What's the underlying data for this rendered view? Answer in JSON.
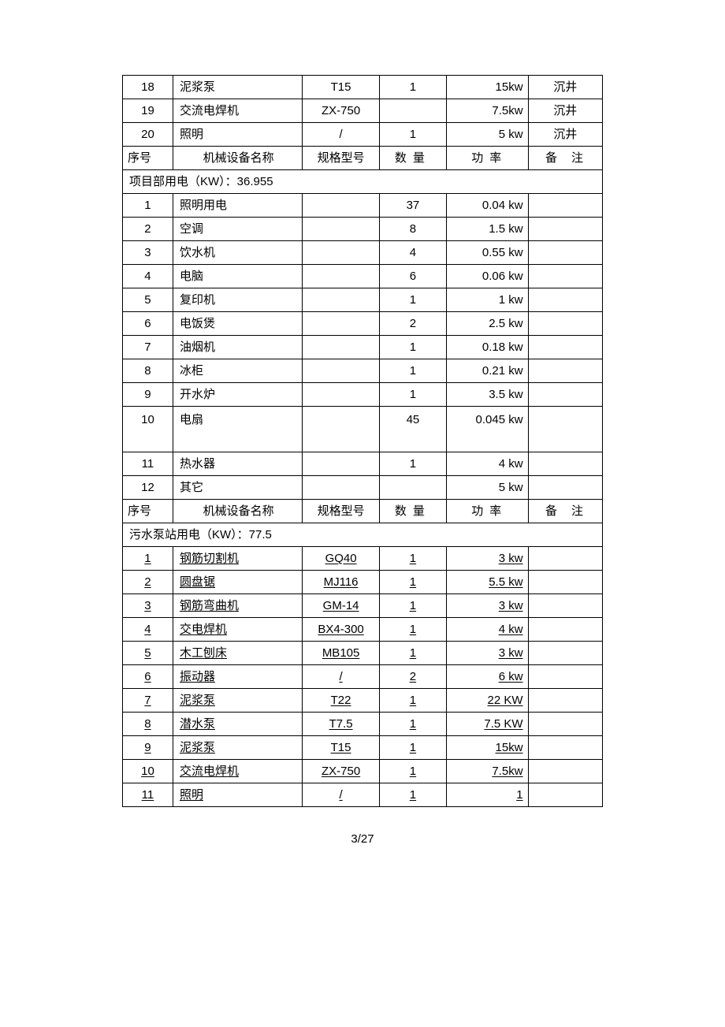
{
  "footer": "3/27",
  "sections": [
    {
      "type": "rows",
      "underline": false,
      "rows": [
        {
          "seq": "18",
          "name": "泥浆泵",
          "model": "T15",
          "qty": "1",
          "power": "15kw",
          "note": "沉井"
        },
        {
          "seq": "19",
          "name": "交流电焊机",
          "model": "ZX-750",
          "qty": "",
          "power": "7.5kw",
          "note": "沉井"
        },
        {
          "seq": "20",
          "name": "照明",
          "model": "/",
          "qty": "1",
          "power": "5 kw",
          "note": "沉井"
        }
      ]
    },
    {
      "type": "header",
      "cols": {
        "seq": "序号",
        "name": "机械设备名称",
        "model": "规格型号",
        "qty": "数量",
        "power": "功率",
        "note": "备注"
      }
    },
    {
      "type": "section",
      "text": "项目部用电（KW）：36.955"
    },
    {
      "type": "rows",
      "underline": false,
      "rows": [
        {
          "seq": "1",
          "name": "照明用电",
          "model": "",
          "qty": "37",
          "power": "0.04 kw",
          "note": ""
        },
        {
          "seq": "2",
          "name": "空调",
          "model": "",
          "qty": "8",
          "power": "1.5 kw",
          "note": ""
        },
        {
          "seq": "3",
          "name": "饮水机",
          "model": "",
          "qty": "4",
          "power": "0.55 kw",
          "note": ""
        },
        {
          "seq": "4",
          "name": "电脑",
          "model": "",
          "qty": "6",
          "power": "0.06 kw",
          "note": ""
        },
        {
          "seq": "5",
          "name": "复印机",
          "model": "",
          "qty": "1",
          "power": "1 kw",
          "note": ""
        },
        {
          "seq": "6",
          "name": "电饭煲",
          "model": "",
          "qty": "2",
          "power": "2.5 kw",
          "note": ""
        },
        {
          "seq": "7",
          "name": "油烟机",
          "model": "",
          "qty": "1",
          "power": "0.18 kw",
          "note": ""
        },
        {
          "seq": "8",
          "name": "冰柜",
          "model": "",
          "qty": "1",
          "power": "0.21 kw",
          "note": ""
        },
        {
          "seq": "9",
          "name": "开水炉",
          "model": "",
          "qty": "1",
          "power": "3.5 kw",
          "note": ""
        },
        {
          "seq": "10",
          "name": "电扇",
          "model": "",
          "qty": "45",
          "power": "0.045 kw",
          "note": "",
          "tall": true
        },
        {
          "seq": "11",
          "name": "热水器",
          "model": "",
          "qty": "1",
          "power": "4 kw",
          "note": ""
        },
        {
          "seq": "12",
          "name": "其它",
          "model": "",
          "qty": "",
          "power": "5 kw",
          "note": ""
        }
      ]
    },
    {
      "type": "header",
      "cols": {
        "seq": "序号",
        "name": "机械设备名称",
        "model": "规格型号",
        "qty": "数量",
        "power": "功率",
        "note": "备注"
      }
    },
    {
      "type": "section",
      "text": "污水泵站用电（KW）：77.5"
    },
    {
      "type": "rows",
      "underline": true,
      "rows": [
        {
          "seq": "1",
          "name": "钢筋切割机",
          "model": "GQ40",
          "qty": "1",
          "power": "3 kw",
          "note": ""
        },
        {
          "seq": "2",
          "name": "圆盘锯",
          "model": "MJ116",
          "qty": "1",
          "power": "5.5 kw",
          "note": ""
        },
        {
          "seq": "3",
          "name": "钢筋弯曲机",
          "model": "GM-14",
          "qty": "1",
          "power": "3 kw",
          "note": ""
        },
        {
          "seq": "4",
          "name": "交电焊机",
          "model": "BX4-300",
          "qty": "1",
          "power": "4 kw",
          "note": ""
        },
        {
          "seq": "5",
          "name": "木工刨床",
          "model": "MB105",
          "qty": "1",
          "power": "3 kw",
          "note": ""
        },
        {
          "seq": "6",
          "name": "振动器",
          "model": "/",
          "qty": "2",
          "power": "6 kw",
          "note": ""
        },
        {
          "seq": "7",
          "name": "泥浆泵",
          "model": "T22",
          "qty": "1",
          "power": "22 KW",
          "note": ""
        },
        {
          "seq": "8",
          "name": "潜水泵",
          "model": "T7.5",
          "qty": "1",
          "power": "7.5 KW",
          "note": ""
        },
        {
          "seq": "9",
          "name": "泥浆泵",
          "model": "T15",
          "qty": "1",
          "power": "15kw",
          "note": ""
        },
        {
          "seq": "10",
          "name": "交流电焊机",
          "model": "ZX-750",
          "qty": "1",
          "power": "7.5kw",
          "note": ""
        },
        {
          "seq": "11",
          "name": "照明",
          "model": "/",
          "qty": "1",
          "power": "1",
          "note": ""
        }
      ]
    }
  ]
}
